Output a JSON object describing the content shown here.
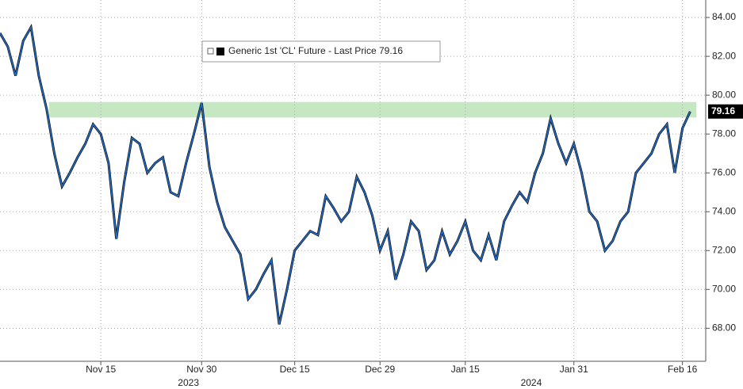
{
  "chart_data": {
    "type": "line",
    "series": [
      {
        "name": "Generic 1st 'CL' Future - Last Price",
        "color": "#1f6fd1",
        "values": [
          83.2,
          82.5,
          81.0,
          82.8,
          83.5,
          81.0,
          79.3,
          77.0,
          75.3,
          76.0,
          76.8,
          77.5,
          78.5,
          78.0,
          76.5,
          72.6,
          75.5,
          77.8,
          77.5,
          76.0,
          76.5,
          76.8,
          75.0,
          74.8,
          76.5,
          78.0,
          79.6,
          76.3,
          74.5,
          73.2,
          72.5,
          71.8,
          69.5,
          70.0,
          70.8,
          71.5,
          68.2,
          70.0,
          72.0,
          72.5,
          73.0,
          72.8,
          74.8,
          74.2,
          73.5,
          74.0,
          75.8,
          75.0,
          73.8,
          72.0,
          73.0,
          70.5,
          71.8,
          73.5,
          73.0,
          71.0,
          71.5,
          73.0,
          71.8,
          72.5,
          73.5,
          72.0,
          71.5,
          72.8,
          71.5,
          73.5,
          74.3,
          75.0,
          74.5,
          76.0,
          77.0,
          78.8,
          77.5,
          76.5,
          77.5,
          76.0,
          74.0,
          73.5,
          72.0,
          72.5,
          73.5,
          74.0,
          76.0,
          76.5,
          77.0,
          78.0,
          78.5,
          76.0,
          78.3,
          79.16
        ]
      }
    ],
    "last_price": 79.16,
    "xlim": [
      0,
      91
    ],
    "xticks": [
      {
        "value": 13,
        "label": "Nov 15"
      },
      {
        "value": 26,
        "label": "Nov 30"
      },
      {
        "value": 38,
        "label": "Dec 15"
      },
      {
        "value": 49,
        "label": "Dec 29"
      },
      {
        "value": 60,
        "label": "Jan 15"
      },
      {
        "value": 74,
        "label": "Jan 31"
      },
      {
        "value": 88,
        "label": "Feb 16"
      }
    ],
    "year_labels": [
      {
        "value": 24.3,
        "label": "2023"
      },
      {
        "value": 68.5,
        "label": "2024"
      }
    ],
    "ylim": [
      66.3,
      84.9
    ],
    "yticks": [
      {
        "value": 68,
        "label": "68.00"
      },
      {
        "value": 70,
        "label": "70.00"
      },
      {
        "value": 72,
        "label": "72.00"
      },
      {
        "value": 74,
        "label": "74.00"
      },
      {
        "value": 76,
        "label": "76.00"
      },
      {
        "value": 78,
        "label": "78.00"
      },
      {
        "value": 80,
        "label": "80.00"
      },
      {
        "value": 82,
        "label": "82.00"
      },
      {
        "value": 84,
        "label": "84.00"
      }
    ],
    "highlight_band": {
      "ylim": [
        78.85,
        79.65
      ],
      "xlim": [
        6.3,
        89.8
      ],
      "color": "#c5e8c3"
    },
    "grid": true
  }
}
